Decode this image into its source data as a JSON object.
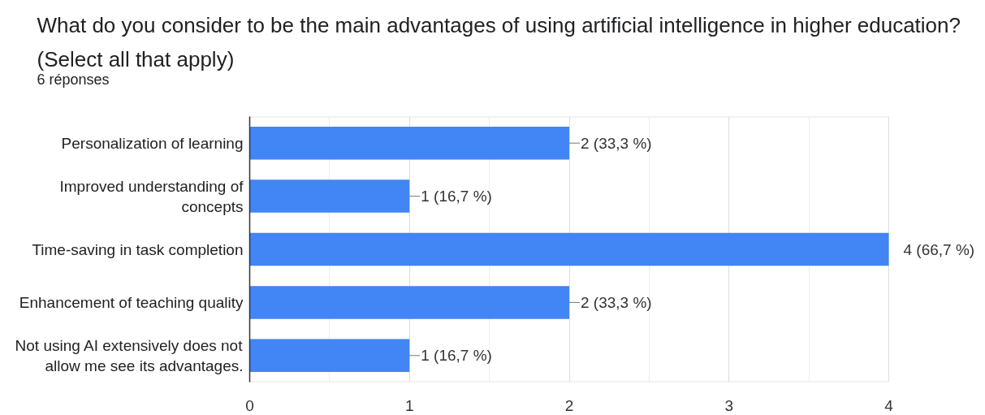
{
  "chart_data": {
    "type": "bar",
    "orientation": "horizontal",
    "title": "What do you consider to be the main advantages of using artificial intelligence in higher education? (Select all that apply)",
    "subtitle": "6 réponses",
    "categories": [
      "Personalization of learning",
      "Improved understanding of concepts",
      "Time-saving in task completion",
      "Enhancement of teaching quality",
      "Not using AI extensively does not allow me see its advantages."
    ],
    "values": [
      2,
      1,
      4,
      2,
      1
    ],
    "color": "#4285f4",
    "value_labels": [
      "2 (33,3 %)",
      "1 (16,7 %)",
      "4 (66,7 %)",
      "2 (33,3 %)",
      "1 (16,7 %)"
    ],
    "xlim": [
      0,
      4
    ],
    "xticks": [
      0,
      {
        "value": 0.5,
        "label": null
      },
      1,
      {
        "value": 1.5,
        "label": null
      },
      2,
      {
        "value": 2.5,
        "label": null
      },
      3,
      {
        "value": 3.5,
        "label": null
      },
      4
    ],
    "grid": "x"
  }
}
